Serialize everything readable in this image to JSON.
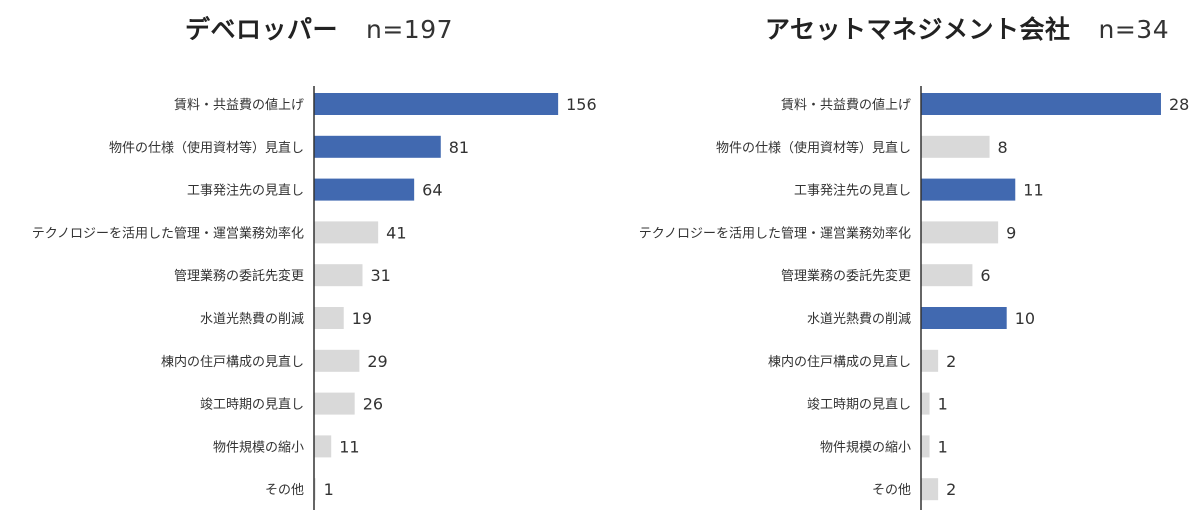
{
  "chart_data": [
    {
      "type": "bar",
      "orientation": "horizontal",
      "title": "デベロッパー",
      "n_label": "n=197",
      "categories": [
        "賃料・共益費の値上げ",
        "物件の仕様（使用資材等）見直し",
        "工事発注先の見直し",
        "テクノロジーを活用した管理・運営業務効率化",
        "管理業務の委託先変更",
        "水道光熱費の削減",
        "棟内の住戸構成の見直し",
        "竣工時期の見直し",
        "物件規模の縮小",
        "その他"
      ],
      "values": [
        156,
        81,
        64,
        41,
        31,
        19,
        29,
        26,
        11,
        1
      ],
      "value_labels": [
        "156",
        "81",
        "64",
        "41",
        "31",
        "19",
        "29",
        "26",
        "11",
        "1"
      ],
      "highlight": [
        true,
        true,
        true,
        false,
        false,
        false,
        false,
        false,
        false,
        false
      ],
      "xlim": [
        0,
        200
      ],
      "grid": false,
      "colors": {
        "highlight": "#4169b0",
        "normal": "#d9d9d9",
        "axis": "#333333"
      }
    },
    {
      "type": "bar",
      "orientation": "horizontal",
      "title": "アセットマネジメント会社",
      "n_label": "n=34",
      "categories": [
        "賃料・共益費の値上げ",
        "物件の仕様（使用資材等）見直し",
        "工事発注先の見直し",
        "テクノロジーを活用した管理・運営業務効率化",
        "管理業務の委託先変更",
        "水道光熱費の削減",
        "棟内の住戸構成の見直し",
        "竣工時期の見直し",
        "物件規模の縮小",
        "その他"
      ],
      "values": [
        28,
        8,
        11,
        9,
        6,
        10,
        2,
        1,
        1,
        2
      ],
      "value_labels": [
        "28",
        "8",
        "11",
        "9",
        "6",
        "10",
        "2",
        "1",
        "1",
        "2"
      ],
      "highlight": [
        true,
        false,
        true,
        false,
        false,
        true,
        false,
        false,
        false,
        false
      ],
      "xlim": [
        0,
        35
      ],
      "grid": false,
      "colors": {
        "highlight": "#4169b0",
        "normal": "#d9d9d9",
        "axis": "#333333"
      }
    }
  ]
}
